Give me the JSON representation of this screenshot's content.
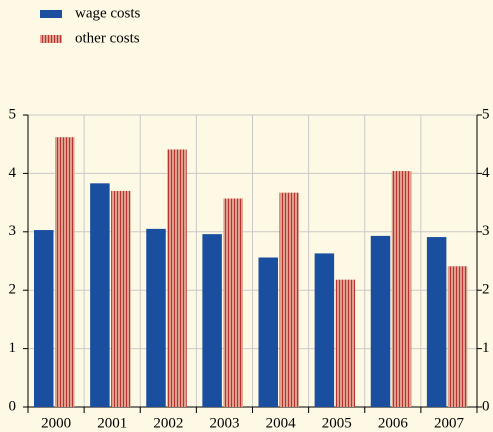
{
  "chart_data": {
    "type": "bar",
    "categories": [
      "2000",
      "2001",
      "2002",
      "2003",
      "2004",
      "2005",
      "2006",
      "2007"
    ],
    "series": [
      {
        "name": "wage costs",
        "color": "#1a4fa0",
        "values": [
          3.03,
          3.83,
          3.05,
          2.96,
          2.56,
          2.63,
          2.93,
          2.91
        ]
      },
      {
        "name": "other costs",
        "color": "#d9998a",
        "values": [
          4.62,
          3.7,
          4.41,
          3.57,
          3.67,
          2.18,
          4.04,
          2.41
        ]
      }
    ],
    "ylim": [
      0,
      5
    ],
    "yticks": [
      0,
      1,
      2,
      3,
      4,
      5
    ],
    "grid": true
  }
}
